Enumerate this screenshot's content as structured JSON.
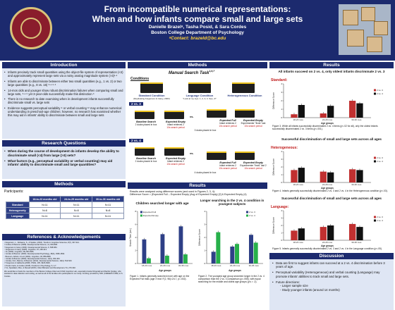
{
  "header": {
    "title_line1": "From incompatible numerical representations:",
    "title_line2": "When and how infants compare small and large sets",
    "authors": "Danielle Brazelᵃ, Tasha Posid, & Sara Cordes",
    "affiliation": "Boston College Department of Psychology",
    "contact": "ᵃContact: brazeld@bc.edu"
  },
  "intro": {
    "title": "Introduction",
    "bullets": [
      "Infants precisely track small quantities using the object-file system of representation (<4) and approximately represent large sets via a noisy analog magnitude system (>3)¹·²",
      "Infants are able to discriminate between either two small quantities (e.g., 1 vs. 2) or two large quantities (e.g., 8 vs. 16) ³·⁴·⁵·⁶",
      "14-mos olds and younger show robust discrimination failures when comparing small and large sets, ³·⁴·⁵ yet 3-year-olds successfully make this distinction ⁶",
      "There is no research to date examining when in development infants successfully discriminate small vs. large sets",
      "Evidence suggests perceptual variability ⁸ or verbal counting ¹² may enhance numerical understanding in preschool-age children; however, no research has examined whether this may aid in infants' ability to discriminate between small and large sets"
    ]
  },
  "rq": {
    "title": "Research Questions",
    "bullets": [
      "When during the course of development do infants develop the ability to discriminate small (<4) from large (>3) sets?",
      "What factors (e.g., perceptual variability or verbal counting) may aid infants' ability to discriminate small and large quantities?"
    ]
  },
  "methods_left": {
    "title": "Methods",
    "participants_label": "Participants:",
    "col_headers": [
      "",
      "18-to-23 months old",
      "24-to-29 months old",
      "30-to-36 months old"
    ],
    "rows": [
      [
        "Standard",
        "N=11",
        "N=11",
        "N=11"
      ],
      [
        "Heterogeneity",
        "N=8",
        "N=8",
        "N=8"
      ],
      [
        "Language",
        "N=11",
        "N=11",
        "N=11"
      ]
    ]
  },
  "refs": {
    "title": "References & Acknowledgements",
    "items": [
      "¹ Feigenson, L., Dehaene, S., & Spelke, (2004). Trends in Cognitive Sciences, 8(7), 307-314.",
      "² Cordes & Brannon (2008). Developmental Science, 11, 803-808.",
      "³ Feigenson & Carey (2003). Developmental Science, 6, 568-584.",
      "⁴ Feigenson & Carey (2005). Cognition, 97, 295-313.",
      "⁵ Xu (2003). Cognition, 89, B15-B25.",
      "⁶ Cordes & Brannon (2009). Developmental Psychology, 45(6), 1583-1594.",
      "⁷ Brannon, Abbott, & Lutz (2004). Cognition, 93, B59-B68.",
      "⁸ Cordes & Brannon (2009). Developmental Science, 12(3), 453-463.",
      "⁹ Cordes, Firm, Barrow, & Brannon (2014). Developmental Science, 19(4), 513-520.",
      "¹⁰ Feigenson & Halberda (2008). PNAS, 105, 9926-9930.",
      "¹¹ Posid, Fazio, & Cordes (2015). Frontiers in Psychology, 6, 1-7.",
      "¹² Vo, Spedalieri, Mou, & Russell (2015). Infant Behavior and Development, 51, 270-302."
    ],
    "ack": "We would like to thank the members of the Boston College Infant and Child Cognition Lab, especially Amelia Fitzgerald and Rachel Quigley, who assisted in data collection and coding, as well as all of the families who participated in our study. Funding provided by NSF (CAREER & HSD) to S. Cordes."
  },
  "methods_center": {
    "title": "Methods",
    "manual_search": "Manual Search Task",
    "manual_search_refs": "1,6,7",
    "conditions": "Conditions",
    "cond_standard": "Standard Condition",
    "cond_standard_sub": "(Replicating Feigenson & Carey, 2003)",
    "cond_language": "Language Condition",
    "cond_language_sub": "\"Look at my toys. 1, 2, 3, 4. See, 4!\"",
    "cond_hetero": "Heterogeneous Condition",
    "trial_2v3": "2 vs. 3",
    "trial_2v4": "2 vs. 4",
    "vs": "vs.",
    "baseline": "Baseline Search",
    "baseline_2v3": "2 ducks placed in box",
    "baseline_2v4": "2 ducks placed in box",
    "exp_empty": "Expected Empty",
    "exp_empty_sub": "Infant retrieves 2",
    "exp_empty_search": "10s search period",
    "three_placed": "3 ducks placed in box",
    "four_placed": "4 ducks placed in box",
    "exp_full": "Expected Full",
    "exp_full_sub": "Infant retrieves 2",
    "exp_finds": "Experimenter \"finds\" last",
    "exp_finds_2v4": "Experimenter \"finds\" last 2",
    "exp_empty2": "Expected Empty",
    "exp_empty2_sub": "Infant retrieves 2"
  },
  "results_center": {
    "title": "Results",
    "line1": "Results were analyzed using difference scores (and used in Figures 2, 3, 4):",
    "line2": "Difference Score = (Expected Full – Expected Empty (Avg of Expected Empty) [2] & Expected Empty (4)",
    "chart1_title": "Children searched longer with age",
    "chart2_title": "Longer searching in the 2 vs. 4 condition in youngest subjects",
    "fig1_caption": "Figure 1. Infants generally searched more with age on the Expected Full trials (age X trial: F(2, 96)=24.7, p=.002).",
    "fig2_caption": "Figure 2. The youngest age group searched longer in the 2 vs. 4 comparison than the 2 vs. 3 comparison (p=.055), with equal searching for the middle and oldest age groups (p's > .2)."
  },
  "results_right": {
    "title": "Results",
    "headline": "All infants succeed on 2 vs. 4, only oldest infants discriminate 2 vs. 3",
    "standard_label": "Standard:",
    "fig3_caption": "Figure 3. While all infants successfully discriminated 2 vs. 4 items (p<.02 for all), only the oldest infants successfully discriminated 2 vs. 3 items (p<.001).",
    "hetero_title": "Successful discrimination of small and large sets across all ages",
    "hetero_label": "Heterogeneous:",
    "fig4_caption": "Figure 4. Infants generally successfully discriminated 2 vs. 3 and 2 vs. 4 in the Heterogeneous condition (p<.03).",
    "lang_title": "Successful discrimination of small and large sets across all ages",
    "lang_label": "Language:",
    "fig5_caption": "Figure 5. Infants generally successfully discriminated 2 vs. 3 and 2 vs. 4 in the Language condition (p<.05).",
    "discussion_title": "Discussion",
    "discussion": [
      "Data are first to suggest infants can succeed at a 2 vs. 4 discrimination before 3 years of age.",
      "Perceptual variability (Heterogeneous) and verbal counting (Language) may promote infants' abilities to track small and large sets."
    ],
    "future_title": "Future directions:",
    "future": [
      "Larger sample size",
      "Study younger infants (around 14 months)"
    ]
  },
  "chart_data": [
    {
      "type": "bar",
      "title": "Children searched longer with age",
      "xlabel": "Age groups",
      "ylabel": "Search Time (sec)",
      "categories": [
        "18-23 mos",
        "24-29 mos",
        "30-36 mos"
      ],
      "ylim": [
        0,
        8
      ],
      "series": [
        {
          "name": "Expected Full",
          "values": [
            3.7,
            4.5,
            5.7
          ],
          "color": "#2e3f86"
        },
        {
          "name": "Expected Empty",
          "values": [
            0.8,
            1.2,
            1.4
          ],
          "color": "#27b04a"
        }
      ]
    },
    {
      "type": "bar",
      "title": "Longer searching in the 2 vs. 4 condition in youngest subjects",
      "xlabel": "Age groups",
      "ylabel": "Difference Score",
      "categories": [
        "18-23 mos",
        "24-29 mos",
        "30-36 mos"
      ],
      "ylim": [
        0,
        4
      ],
      "series": [
        {
          "name": "2 vs. 3",
          "values": [
            0.9,
            1.3,
            2.2
          ],
          "color": "#2e3f86"
        },
        {
          "name": "2 vs. 4",
          "values": [
            2.4,
            1.5,
            1.6
          ],
          "color": "#27b04a"
        }
      ]
    },
    {
      "type": "bar",
      "title": "",
      "xlabel": "Age groups",
      "ylabel": "Difference Score",
      "categories": [
        "18-23 mos",
        "24-29 mos",
        "30-36 mos"
      ],
      "ylim": [
        0,
        4
      ],
      "series": [
        {
          "name": "2 vs. 3",
          "values": [
            0.4,
            0.5,
            2.0
          ],
          "color": "#c03030"
        },
        {
          "name": "2 vs. 4",
          "values": [
            1.5,
            1.4,
            1.7
          ],
          "color": "#111111"
        }
      ]
    },
    {
      "type": "bar",
      "title": "Successful discrimination of small and large sets across all ages",
      "xlabel": "Age groups",
      "ylabel": "Difference Score",
      "categories": [
        "18-23 mos",
        "24-29 mos",
        "30-36 mos"
      ],
      "ylim": [
        0,
        4
      ],
      "series": [
        {
          "name": "2 vs. 3",
          "values": [
            1.6,
            1.4,
            1.7
          ],
          "color": "#c03030"
        },
        {
          "name": "2 vs. 4",
          "values": [
            1.9,
            1.3,
            1.6
          ],
          "color": "#111111"
        }
      ]
    },
    {
      "type": "bar",
      "title": "Successful discrimination of small and large sets across all ages",
      "xlabel": "Age groups",
      "ylabel": "Difference Score",
      "categories": [
        "18-23 mos",
        "24-29 mos",
        "30-36 mos"
      ],
      "ylim": [
        0,
        4
      ],
      "series": [
        {
          "name": "2 vs. 3",
          "values": [
            1.3,
            1.8,
            2.2
          ],
          "color": "#c03030"
        },
        {
          "name": "2 vs. 4",
          "values": [
            1.6,
            2.0,
            1.8
          ],
          "color": "#111111"
        }
      ]
    }
  ]
}
